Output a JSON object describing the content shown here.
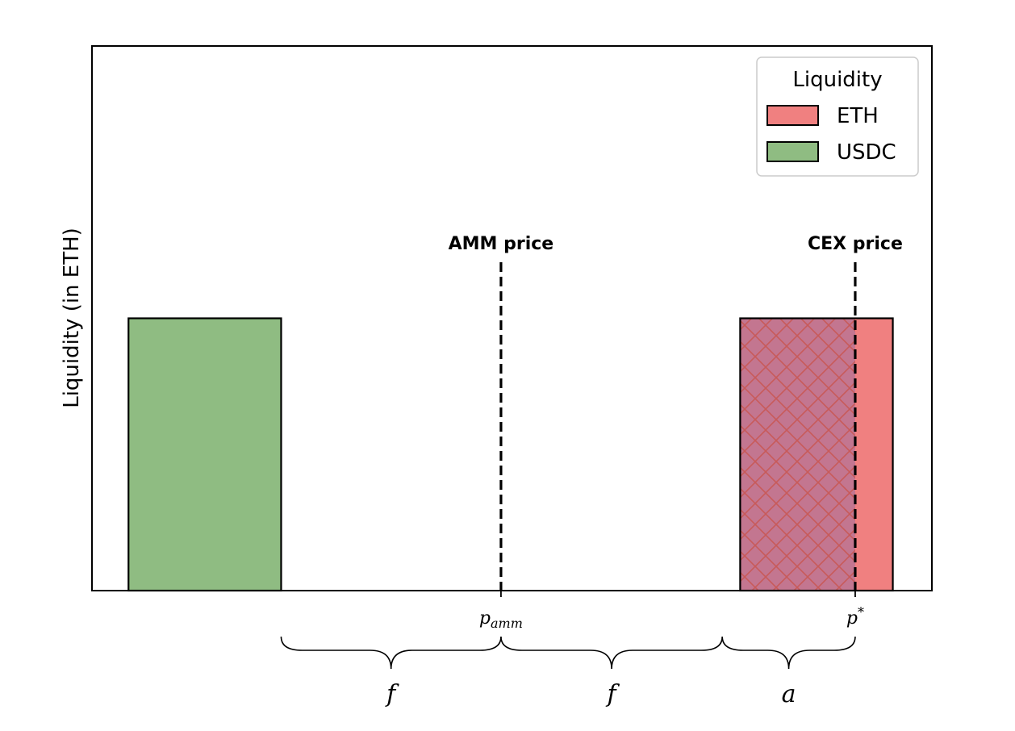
{
  "chart_data": {
    "type": "bar",
    "ylabel": "Liquidity (in ETH)",
    "xlim": [
      -3.25,
      8.25
    ],
    "ylim": [
      0,
      2
    ],
    "bars": [
      {
        "series": "USDC",
        "x_start": -2.75,
        "x_end": -0.66,
        "value": 1.0
      },
      {
        "series": "ETH",
        "x_start": 5.625,
        "x_end": 7.715,
        "value": 1.0,
        "hatched_until": 7.2
      }
    ],
    "vlines": [
      {
        "x": 2.35,
        "label": "AMM price",
        "tick": "p",
        "tick_sub": "amm"
      },
      {
        "x": 7.2,
        "label": "CEX price",
        "tick": "p",
        "tick_sup": "*"
      }
    ],
    "braces": [
      {
        "from": -0.66,
        "to": 2.35,
        "label": "f"
      },
      {
        "from": 2.35,
        "to": 5.38,
        "label": "f"
      },
      {
        "from": 5.38,
        "to": 7.2,
        "label": "a"
      }
    ],
    "legend": {
      "title": "Liquidity",
      "placement": "top-right",
      "entries": [
        {
          "label": "ETH",
          "color": "#f08080"
        },
        {
          "label": "USDC",
          "color": "#8fbc82"
        }
      ]
    },
    "colors": {
      "ETH": "#f08080",
      "USDC": "#8fbc82",
      "hatch_overlay": "#8b6aa5",
      "hatch_line": "#c85a5a"
    }
  }
}
